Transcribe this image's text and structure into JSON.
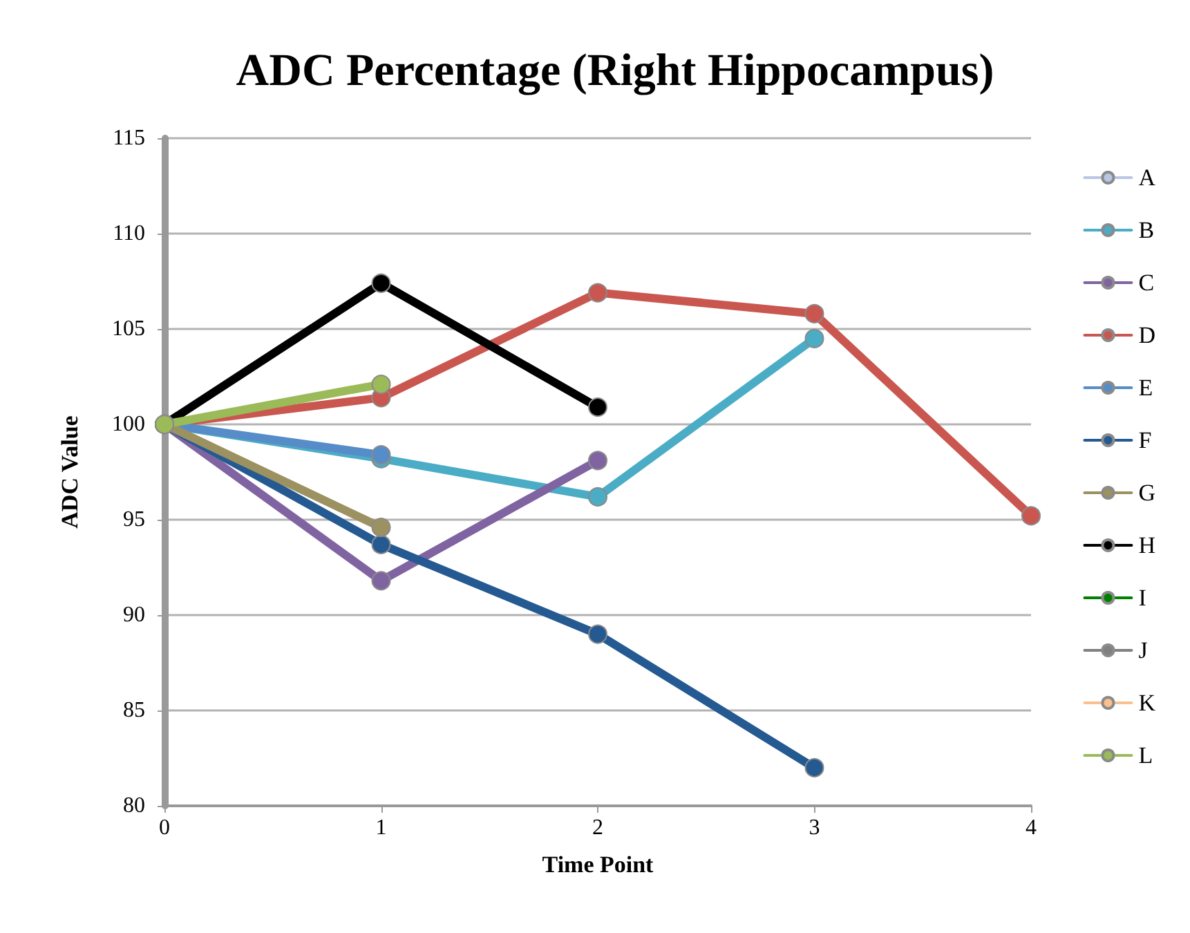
{
  "chart_data": {
    "type": "line",
    "title": "ADC Percentage (Right Hippocampus)",
    "xlabel": "Time Point",
    "ylabel": "ADC Value",
    "x": [
      0,
      1,
      2,
      3,
      4
    ],
    "series": [
      {
        "name": "A",
        "color": "#b9c7e4",
        "values": [
          null,
          null,
          null,
          null,
          null
        ]
      },
      {
        "name": "B",
        "color": "#4bacc6",
        "values": [
          100,
          98.2,
          96.2,
          104.5,
          null
        ]
      },
      {
        "name": "C",
        "color": "#8064a2",
        "values": [
          100,
          91.8,
          98.1,
          null,
          null
        ]
      },
      {
        "name": "D",
        "color": "#c9574f",
        "values": [
          100,
          101.4,
          106.9,
          105.8,
          95.2
        ]
      },
      {
        "name": "E",
        "color": "#568dc8",
        "values": [
          100,
          98.4,
          null,
          null,
          null
        ]
      },
      {
        "name": "F",
        "color": "#245a91",
        "values": [
          100,
          93.7,
          89.0,
          82.0,
          null
        ]
      },
      {
        "name": "G",
        "color": "#9c9160",
        "values": [
          100,
          94.6,
          null,
          null,
          null
        ]
      },
      {
        "name": "H",
        "color": "#000000",
        "values": [
          100,
          107.4,
          100.9,
          null,
          null
        ]
      },
      {
        "name": "I",
        "color": "#008000",
        "values": [
          null,
          null,
          null,
          null,
          null
        ]
      },
      {
        "name": "J",
        "color": "#808080",
        "values": [
          null,
          null,
          null,
          null,
          null
        ]
      },
      {
        "name": "K",
        "color": "#fac090",
        "values": [
          null,
          null,
          null,
          null,
          null
        ]
      },
      {
        "name": "L",
        "color": "#9bbb59",
        "values": [
          100,
          102.1,
          null,
          null,
          null
        ]
      }
    ],
    "xlim": [
      0,
      4
    ],
    "xticks": [
      0,
      1,
      2,
      3,
      4
    ],
    "ylim": [
      80,
      115
    ],
    "yticks": [
      80,
      85,
      90,
      95,
      100,
      105,
      110,
      115
    ],
    "grid": "y",
    "legend": "right",
    "marker": "circle",
    "line_style": "solid"
  }
}
